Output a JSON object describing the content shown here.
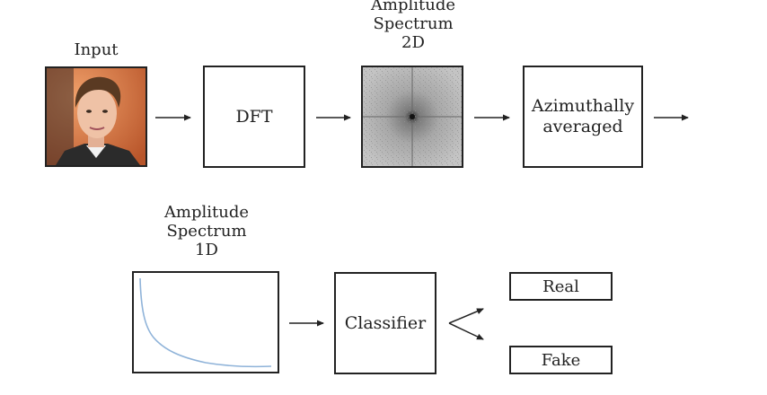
{
  "labels": {
    "input": "Input",
    "amplitude_2d": [
      "Amplitude",
      "Spectrum",
      "2D"
    ],
    "amplitude_1d": [
      "Amplitude",
      "Spectrum",
      "1D"
    ]
  },
  "boxes": {
    "dft": "DFT",
    "azimuthal": [
      "Azimuthally",
      "averaged"
    ],
    "classifier": "Classifier",
    "real": "Real",
    "fake": "Fake"
  },
  "icons": {
    "input_image": "face-photo-icon",
    "spectrum_2d": "amplitude-spectrum-2d-icon",
    "spectrum_1d": "amplitude-spectrum-1d-curve-icon",
    "arrow": "right-arrow-icon"
  },
  "colors": {
    "curve": "#8fb3d9",
    "photo_bg": "#d9703e"
  }
}
